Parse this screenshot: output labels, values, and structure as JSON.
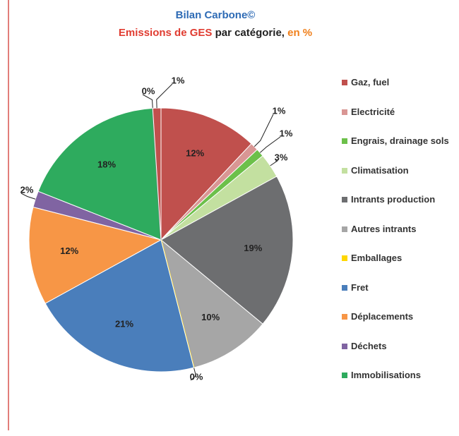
{
  "chart_data": {
    "type": "pie",
    "title": "Bilan Carbone©",
    "subtitle": [
      "Emissions de GES",
      "par catégorie,",
      "en %"
    ],
    "categories": [
      "Gaz, fuel",
      "Electricité",
      "Engrais, drainage sols",
      "Climatisation",
      "Intrants production",
      "Autres intrants",
      "Emballages",
      "Fret",
      "Déplacements",
      "Déchets",
      "Immobilisations",
      null,
      null
    ],
    "values": [
      12,
      1,
      1,
      3,
      19,
      10,
      0,
      21,
      12,
      2,
      18,
      0,
      1
    ],
    "colors": [
      "#c0504d",
      "#d99694",
      "#6cc04a",
      "#c3e0a0",
      "#6d6e70",
      "#a6a6a6",
      "#ffd700",
      "#4a7ebb",
      "#f79646",
      "#8064a2",
      "#2eab5e",
      "#7f7f7f",
      "#c0504d"
    ],
    "value_labels": [
      "12%",
      "1%",
      "1%",
      "3%",
      "19%",
      "10%",
      "0%",
      "21%",
      "12%",
      "2%",
      "18%",
      "0%",
      "1%"
    ]
  }
}
